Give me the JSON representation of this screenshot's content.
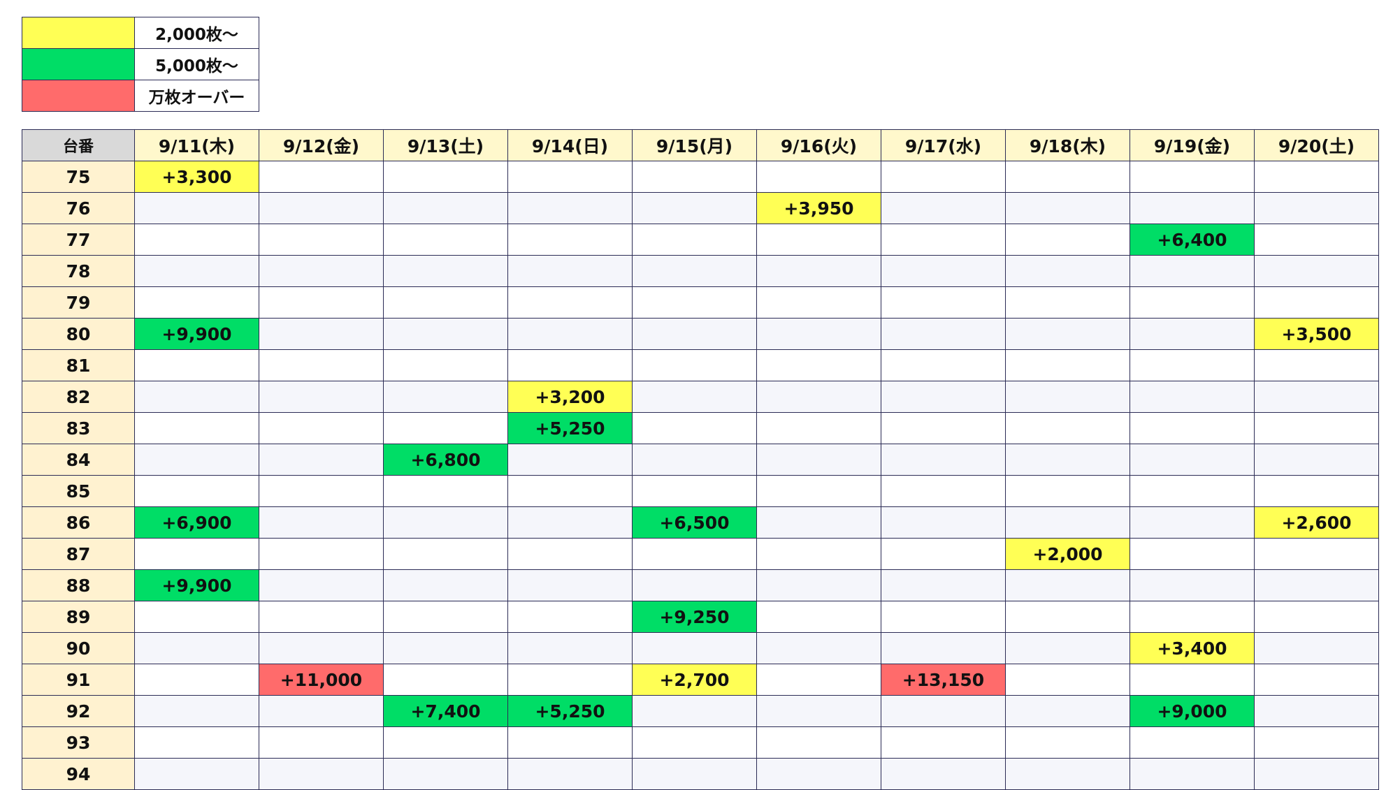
{
  "legend": [
    {
      "color": "#ffff55",
      "label": "2,000枚～"
    },
    {
      "color": "#00dd66",
      "label": "5,000枚～"
    },
    {
      "color": "#ff6b6b",
      "label": "万枚オーバー"
    }
  ],
  "table": {
    "header": [
      "台番",
      "9/11(木)",
      "9/12(金)",
      "9/13(土)",
      "9/14(日)",
      "9/15(月)",
      "9/16(火)",
      "9/17(水)",
      "9/18(木)",
      "9/19(金)",
      "9/20(土)"
    ],
    "rows": [
      {
        "label": "75",
        "cells": [
          {
            "text": "+3,300",
            "color": "#ffff55"
          },
          null,
          null,
          null,
          null,
          null,
          null,
          null,
          null,
          null
        ]
      },
      {
        "label": "76",
        "cells": [
          null,
          null,
          null,
          null,
          null,
          {
            "text": "+3,950",
            "color": "#ffff55"
          },
          null,
          null,
          null,
          null
        ]
      },
      {
        "label": "77",
        "cells": [
          null,
          null,
          null,
          null,
          null,
          null,
          null,
          null,
          {
            "text": "+6,400",
            "color": "#00dd66"
          },
          null
        ]
      },
      {
        "label": "78",
        "cells": [
          null,
          null,
          null,
          null,
          null,
          null,
          null,
          null,
          null,
          null
        ]
      },
      {
        "label": "79",
        "cells": [
          null,
          null,
          null,
          null,
          null,
          null,
          null,
          null,
          null,
          null
        ]
      },
      {
        "label": "80",
        "cells": [
          {
            "text": "+9,900",
            "color": "#00dd66"
          },
          null,
          null,
          null,
          null,
          null,
          null,
          null,
          null,
          {
            "text": "+3,500",
            "color": "#ffff55"
          }
        ]
      },
      {
        "label": "81",
        "cells": [
          null,
          null,
          null,
          null,
          null,
          null,
          null,
          null,
          null,
          null
        ]
      },
      {
        "label": "82",
        "cells": [
          null,
          null,
          null,
          {
            "text": "+3,200",
            "color": "#ffff55"
          },
          null,
          null,
          null,
          null,
          null,
          null
        ]
      },
      {
        "label": "83",
        "cells": [
          null,
          null,
          null,
          {
            "text": "+5,250",
            "color": "#00dd66"
          },
          null,
          null,
          null,
          null,
          null,
          null
        ]
      },
      {
        "label": "84",
        "cells": [
          null,
          null,
          {
            "text": "+6,800",
            "color": "#00dd66"
          },
          null,
          null,
          null,
          null,
          null,
          null,
          null
        ]
      },
      {
        "label": "85",
        "cells": [
          null,
          null,
          null,
          null,
          null,
          null,
          null,
          null,
          null,
          null
        ]
      },
      {
        "label": "86",
        "cells": [
          {
            "text": "+6,900",
            "color": "#00dd66"
          },
          null,
          null,
          null,
          {
            "text": "+6,500",
            "color": "#00dd66"
          },
          null,
          null,
          null,
          null,
          {
            "text": "+2,600",
            "color": "#ffff55"
          }
        ]
      },
      {
        "label": "87",
        "cells": [
          null,
          null,
          null,
          null,
          null,
          null,
          null,
          {
            "text": "+2,000",
            "color": "#ffff55"
          },
          null,
          null
        ]
      },
      {
        "label": "88",
        "cells": [
          {
            "text": "+9,900",
            "color": "#00dd66"
          },
          null,
          null,
          null,
          null,
          null,
          null,
          null,
          null,
          null
        ]
      },
      {
        "label": "89",
        "cells": [
          null,
          null,
          null,
          null,
          {
            "text": "+9,250",
            "color": "#00dd66"
          },
          null,
          null,
          null,
          null,
          null
        ]
      },
      {
        "label": "90",
        "cells": [
          null,
          null,
          null,
          null,
          null,
          null,
          null,
          null,
          {
            "text": "+3,400",
            "color": "#ffff55"
          },
          null
        ]
      },
      {
        "label": "91",
        "cells": [
          null,
          {
            "text": "+11,000",
            "color": "#ff6b6b"
          },
          null,
          null,
          {
            "text": "+2,700",
            "color": "#ffff55"
          },
          null,
          {
            "text": "+13,150",
            "color": "#ff6b6b"
          },
          null,
          null,
          null
        ]
      },
      {
        "label": "92",
        "cells": [
          null,
          null,
          {
            "text": "+7,400",
            "color": "#00dd66"
          },
          {
            "text": "+5,250",
            "color": "#00dd66"
          },
          null,
          null,
          null,
          null,
          {
            "text": "+9,000",
            "color": "#00dd66"
          },
          null
        ]
      },
      {
        "label": "93",
        "cells": [
          null,
          null,
          null,
          null,
          null,
          null,
          null,
          null,
          null,
          null
        ]
      },
      {
        "label": "94",
        "cells": [
          null,
          null,
          null,
          null,
          null,
          null,
          null,
          null,
          null,
          null
        ]
      }
    ]
  }
}
